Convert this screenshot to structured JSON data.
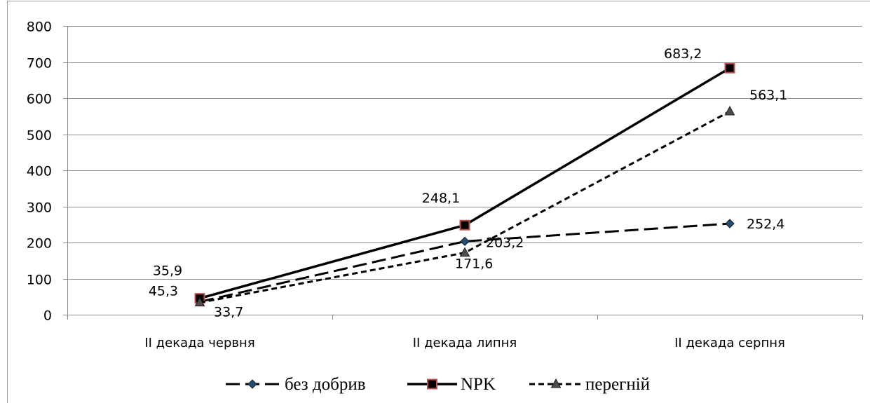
{
  "chart_data": {
    "type": "line",
    "title": "",
    "xlabel": "",
    "ylabel": "",
    "categories": [
      "II декада червня",
      "II декада липня",
      "II декада серпня"
    ],
    "ylim": [
      0,
      800
    ],
    "yticks": [
      0,
      100,
      200,
      300,
      400,
      500,
      600,
      700,
      800
    ],
    "ytick_labels": [
      "0",
      "100",
      "200",
      "300",
      "400",
      "500",
      "600",
      "700",
      "800"
    ],
    "grid": "horizontal",
    "legend_position": "bottom",
    "series": [
      {
        "name": "без добрив",
        "values": [
          35.9,
          203.2,
          252.4
        ],
        "labels": [
          "35,9",
          "203,2",
          "252,4"
        ],
        "color": "#000000",
        "marker": "diamond",
        "marker_color": "#1f4e79",
        "line_style": "long-dash"
      },
      {
        "name": "NPK",
        "values": [
          45.3,
          248.1,
          683.2
        ],
        "labels": [
          "45,3",
          "248,1",
          "683,2"
        ],
        "color": "#000000",
        "marker": "square",
        "marker_color": "#c0504d",
        "line_style": "solid"
      },
      {
        "name": "перегній",
        "values": [
          33.7,
          171.6,
          563.1
        ],
        "labels": [
          "33,7",
          "171,6",
          "563,1"
        ],
        "color": "#000000",
        "marker": "triangle",
        "marker_color": "#4d4d4d",
        "line_style": "short-dash"
      }
    ]
  }
}
